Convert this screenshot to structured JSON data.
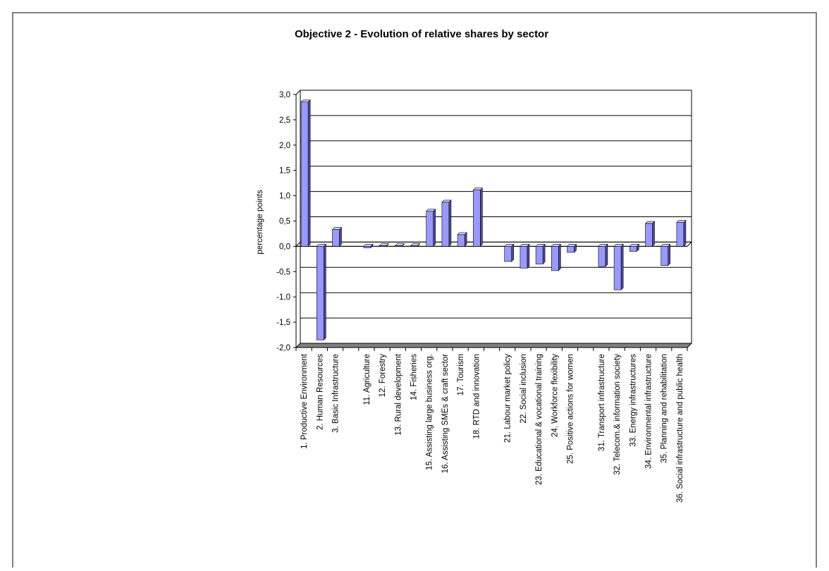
{
  "chart_data": {
    "type": "bar",
    "title": "Objective 2 - Evolution  of relative shares by sector",
    "ylabel": "percentage points",
    "color": "#9999ff",
    "grid": true,
    "ylim": [
      -2,
      3
    ],
    "yticks": [
      {
        "value": -2,
        "label": "-2,0"
      },
      {
        "value": -1.5,
        "label": "-1,5"
      },
      {
        "value": -1,
        "label": "-1,0"
      },
      {
        "value": -0.5,
        "label": "-0,5"
      },
      {
        "value": 0,
        "label": "0,0"
      },
      {
        "value": 0.5,
        "label": "0,5"
      },
      {
        "value": 1,
        "label": "1,0"
      },
      {
        "value": 1.5,
        "label": "1,5"
      },
      {
        "value": 2,
        "label": "2,0"
      },
      {
        "value": 2.5,
        "label": "2,5"
      },
      {
        "value": 3,
        "label": "3,0"
      }
    ],
    "categories": [
      "1. Productive Environment",
      "2. Human Resources",
      "3. Basic Infrastructure",
      null,
      "11. Agriculture",
      "12. Forestry",
      "13. Rural development",
      "14. Fisheries",
      "15. Assisting large business org.",
      "16. Assisting SMEs & craft sector",
      "17. Tourism",
      "18. RTD and innovation",
      null,
      "21. Labour market policy",
      "22. Social inclusion",
      "23. Educational & vocational training",
      "24. Workforce flexibility",
      "25. Positive actions for women",
      null,
      "31. Transport infrastructure",
      "32. Telecom.& information society",
      "33. Energy infrastructures",
      "34. Environmental infrastructure",
      "35. Planning and rehabilitation",
      "36. Social infrastructure and public health"
    ],
    "values": [
      2.85,
      -1.85,
      0.33,
      null,
      -0.03,
      0.01,
      0.01,
      0.01,
      0.69,
      0.87,
      0.23,
      1.11,
      null,
      -0.3,
      -0.43,
      -0.35,
      -0.48,
      -0.12,
      null,
      -0.4,
      -0.86,
      -0.1,
      0.45,
      -0.38,
      0.47
    ]
  }
}
